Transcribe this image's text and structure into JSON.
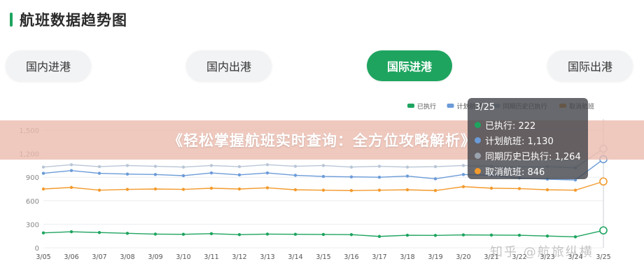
{
  "header": {
    "title": "航班数据趋势图"
  },
  "tabs": [
    {
      "label": "国内进港",
      "active": false
    },
    {
      "label": "国内出港",
      "active": false
    },
    {
      "label": "国际进港",
      "active": true
    },
    {
      "label": "国际出港",
      "active": false
    }
  ],
  "banner": {
    "text": "《轻松掌握航班实时查询：全方位攻略解析》"
  },
  "tooltip": {
    "date": "3/25",
    "rows": [
      {
        "text": "已执行: 222",
        "color": "#1ea45f"
      },
      {
        "text": "计划航班: 1,130",
        "color": "#6b9bd8"
      },
      {
        "text": "同期历史已执行: 1,264",
        "color": "#9aa3ad"
      },
      {
        "text": "取消航班: 846",
        "color": "#f39a2c"
      }
    ]
  },
  "watermark": {
    "text": "知乎 @航旅纵横"
  },
  "chart_data": {
    "type": "line",
    "categories": [
      "3/05",
      "3/06",
      "3/07",
      "3/08",
      "3/09",
      "3/10",
      "3/11",
      "3/12",
      "3/13",
      "3/14",
      "3/15",
      "3/16",
      "3/17",
      "3/18",
      "3/19",
      "3/20",
      "3/21",
      "3/22",
      "3/23",
      "3/24",
      "3/25"
    ],
    "y_ticks": [
      "0",
      "300",
      "600",
      "900",
      "1,200",
      "1,500"
    ],
    "ylim": [
      0,
      1500
    ],
    "legend_position": "top-right",
    "grid": true,
    "series": [
      {
        "name": "已执行",
        "color": "#1ea45f",
        "values": [
          190,
          205,
          195,
          185,
          175,
          172,
          180,
          168,
          175,
          172,
          170,
          168,
          145,
          160,
          158,
          165,
          162,
          160,
          150,
          140,
          222
        ]
      },
      {
        "name": "计划航班",
        "color": "#6b9bd8",
        "values": [
          950,
          985,
          950,
          940,
          935,
          920,
          955,
          930,
          955,
          925,
          910,
          905,
          900,
          915,
          880,
          935,
          925,
          890,
          875,
          865,
          1130
        ]
      },
      {
        "name": "同期历史已执行",
        "color": "#b8c6d6",
        "values": [
          1030,
          1060,
          1035,
          1050,
          1040,
          1030,
          1050,
          1035,
          1060,
          1040,
          1050,
          1030,
          1040,
          1030,
          1035,
          1050,
          1040,
          1030,
          1035,
          1020,
          1264
        ]
      },
      {
        "name": "取消航班",
        "color": "#f39a2c",
        "values": [
          750,
          770,
          735,
          745,
          750,
          745,
          760,
          750,
          765,
          740,
          735,
          730,
          735,
          740,
          730,
          780,
          760,
          755,
          740,
          735,
          846
        ]
      }
    ]
  }
}
